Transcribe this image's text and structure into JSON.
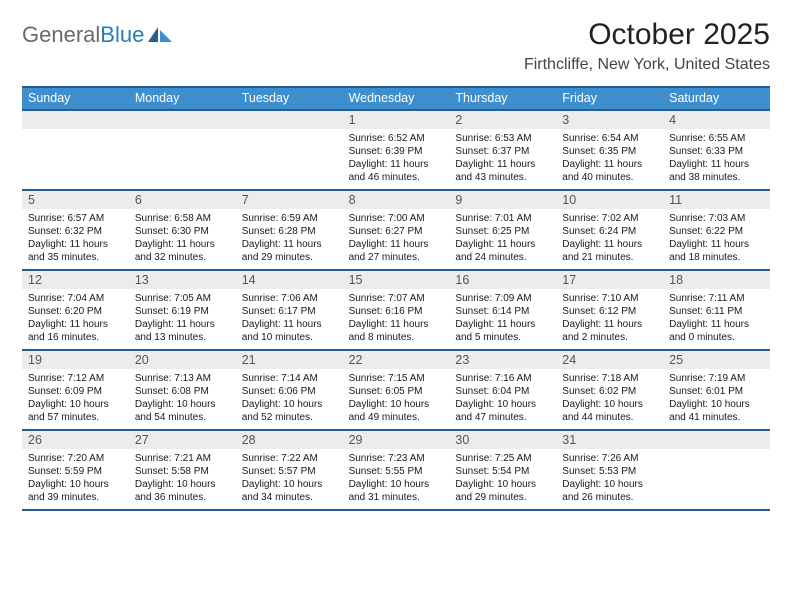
{
  "logo": {
    "part1": "General",
    "part2": "Blue"
  },
  "title": "October 2025",
  "location": "Firthcliffe, New York, United States",
  "colors": {
    "header_bg": "#3f8fce",
    "rule": "#275e92",
    "daynum_bg": "#ececec",
    "text": "#1a1a1a",
    "logo_gray": "#6b6b6b",
    "logo_blue": "#2b7bb9"
  },
  "weekdays": [
    "Sunday",
    "Monday",
    "Tuesday",
    "Wednesday",
    "Thursday",
    "Friday",
    "Saturday"
  ],
  "weeks": [
    {
      "nums": [
        "",
        "",
        "",
        "1",
        "2",
        "3",
        "4"
      ],
      "cells": [
        null,
        null,
        null,
        {
          "sr": "Sunrise: 6:52 AM",
          "ss": "Sunset: 6:39 PM",
          "d1": "Daylight: 11 hours",
          "d2": "and 46 minutes."
        },
        {
          "sr": "Sunrise: 6:53 AM",
          "ss": "Sunset: 6:37 PM",
          "d1": "Daylight: 11 hours",
          "d2": "and 43 minutes."
        },
        {
          "sr": "Sunrise: 6:54 AM",
          "ss": "Sunset: 6:35 PM",
          "d1": "Daylight: 11 hours",
          "d2": "and 40 minutes."
        },
        {
          "sr": "Sunrise: 6:55 AM",
          "ss": "Sunset: 6:33 PM",
          "d1": "Daylight: 11 hours",
          "d2": "and 38 minutes."
        }
      ]
    },
    {
      "nums": [
        "5",
        "6",
        "7",
        "8",
        "9",
        "10",
        "11"
      ],
      "cells": [
        {
          "sr": "Sunrise: 6:57 AM",
          "ss": "Sunset: 6:32 PM",
          "d1": "Daylight: 11 hours",
          "d2": "and 35 minutes."
        },
        {
          "sr": "Sunrise: 6:58 AM",
          "ss": "Sunset: 6:30 PM",
          "d1": "Daylight: 11 hours",
          "d2": "and 32 minutes."
        },
        {
          "sr": "Sunrise: 6:59 AM",
          "ss": "Sunset: 6:28 PM",
          "d1": "Daylight: 11 hours",
          "d2": "and 29 minutes."
        },
        {
          "sr": "Sunrise: 7:00 AM",
          "ss": "Sunset: 6:27 PM",
          "d1": "Daylight: 11 hours",
          "d2": "and 27 minutes."
        },
        {
          "sr": "Sunrise: 7:01 AM",
          "ss": "Sunset: 6:25 PM",
          "d1": "Daylight: 11 hours",
          "d2": "and 24 minutes."
        },
        {
          "sr": "Sunrise: 7:02 AM",
          "ss": "Sunset: 6:24 PM",
          "d1": "Daylight: 11 hours",
          "d2": "and 21 minutes."
        },
        {
          "sr": "Sunrise: 7:03 AM",
          "ss": "Sunset: 6:22 PM",
          "d1": "Daylight: 11 hours",
          "d2": "and 18 minutes."
        }
      ]
    },
    {
      "nums": [
        "12",
        "13",
        "14",
        "15",
        "16",
        "17",
        "18"
      ],
      "cells": [
        {
          "sr": "Sunrise: 7:04 AM",
          "ss": "Sunset: 6:20 PM",
          "d1": "Daylight: 11 hours",
          "d2": "and 16 minutes."
        },
        {
          "sr": "Sunrise: 7:05 AM",
          "ss": "Sunset: 6:19 PM",
          "d1": "Daylight: 11 hours",
          "d2": "and 13 minutes."
        },
        {
          "sr": "Sunrise: 7:06 AM",
          "ss": "Sunset: 6:17 PM",
          "d1": "Daylight: 11 hours",
          "d2": "and 10 minutes."
        },
        {
          "sr": "Sunrise: 7:07 AM",
          "ss": "Sunset: 6:16 PM",
          "d1": "Daylight: 11 hours",
          "d2": "and 8 minutes."
        },
        {
          "sr": "Sunrise: 7:09 AM",
          "ss": "Sunset: 6:14 PM",
          "d1": "Daylight: 11 hours",
          "d2": "and 5 minutes."
        },
        {
          "sr": "Sunrise: 7:10 AM",
          "ss": "Sunset: 6:12 PM",
          "d1": "Daylight: 11 hours",
          "d2": "and 2 minutes."
        },
        {
          "sr": "Sunrise: 7:11 AM",
          "ss": "Sunset: 6:11 PM",
          "d1": "Daylight: 11 hours",
          "d2": "and 0 minutes."
        }
      ]
    },
    {
      "nums": [
        "19",
        "20",
        "21",
        "22",
        "23",
        "24",
        "25"
      ],
      "cells": [
        {
          "sr": "Sunrise: 7:12 AM",
          "ss": "Sunset: 6:09 PM",
          "d1": "Daylight: 10 hours",
          "d2": "and 57 minutes."
        },
        {
          "sr": "Sunrise: 7:13 AM",
          "ss": "Sunset: 6:08 PM",
          "d1": "Daylight: 10 hours",
          "d2": "and 54 minutes."
        },
        {
          "sr": "Sunrise: 7:14 AM",
          "ss": "Sunset: 6:06 PM",
          "d1": "Daylight: 10 hours",
          "d2": "and 52 minutes."
        },
        {
          "sr": "Sunrise: 7:15 AM",
          "ss": "Sunset: 6:05 PM",
          "d1": "Daylight: 10 hours",
          "d2": "and 49 minutes."
        },
        {
          "sr": "Sunrise: 7:16 AM",
          "ss": "Sunset: 6:04 PM",
          "d1": "Daylight: 10 hours",
          "d2": "and 47 minutes."
        },
        {
          "sr": "Sunrise: 7:18 AM",
          "ss": "Sunset: 6:02 PM",
          "d1": "Daylight: 10 hours",
          "d2": "and 44 minutes."
        },
        {
          "sr": "Sunrise: 7:19 AM",
          "ss": "Sunset: 6:01 PM",
          "d1": "Daylight: 10 hours",
          "d2": "and 41 minutes."
        }
      ]
    },
    {
      "nums": [
        "26",
        "27",
        "28",
        "29",
        "30",
        "31",
        ""
      ],
      "cells": [
        {
          "sr": "Sunrise: 7:20 AM",
          "ss": "Sunset: 5:59 PM",
          "d1": "Daylight: 10 hours",
          "d2": "and 39 minutes."
        },
        {
          "sr": "Sunrise: 7:21 AM",
          "ss": "Sunset: 5:58 PM",
          "d1": "Daylight: 10 hours",
          "d2": "and 36 minutes."
        },
        {
          "sr": "Sunrise: 7:22 AM",
          "ss": "Sunset: 5:57 PM",
          "d1": "Daylight: 10 hours",
          "d2": "and 34 minutes."
        },
        {
          "sr": "Sunrise: 7:23 AM",
          "ss": "Sunset: 5:55 PM",
          "d1": "Daylight: 10 hours",
          "d2": "and 31 minutes."
        },
        {
          "sr": "Sunrise: 7:25 AM",
          "ss": "Sunset: 5:54 PM",
          "d1": "Daylight: 10 hours",
          "d2": "and 29 minutes."
        },
        {
          "sr": "Sunrise: 7:26 AM",
          "ss": "Sunset: 5:53 PM",
          "d1": "Daylight: 10 hours",
          "d2": "and 26 minutes."
        },
        null
      ]
    }
  ]
}
